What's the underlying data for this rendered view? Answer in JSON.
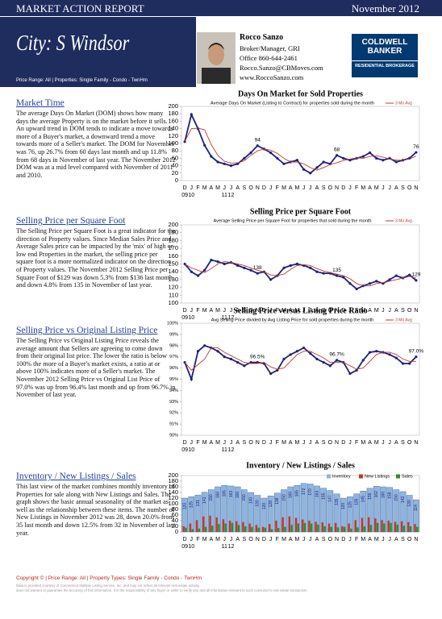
{
  "header": {
    "report": "MARKET ACTION REPORT",
    "date": "November 2012",
    "city": "City: S Windsor",
    "filters": "Price Range: All | Properties: Single Family - Condo - TwnHm"
  },
  "agent": {
    "name": "Rocco Sanzo",
    "role": "Broker/Manager, GRI",
    "phone": "Office 860-644-2461",
    "email": "Rocco.Sanzo@CBMoves.com",
    "web": "www.RoccoSanzo.com"
  },
  "logo": {
    "brand_1": "COLDWELL",
    "brand_2": "BANKER",
    "division": "RESIDENTIAL BROKERAGE"
  },
  "sections": [
    {
      "title": "Market Time",
      "text": "The average Days On Market (DOM) shows how many days the average Property is on the market before it sells. An upward trend in DOM tends to indicate a move towards more of a Buyer's market, a downward trend a move towards more of a Seller's market. The DOM for November was 76, up 26.7% from 60 days last month and up 11.8% from 68 days in November of last year. The November 2012 DOM was at a mid level compared with November of 2011 and 2010."
    },
    {
      "title": "Selling Price per Square Foot",
      "text": "The Selling Price per Square Foot is a great indicator for the direction of Property values. Since Median Sales Price and Average Sales price can be impacted by the 'mix' of high or low end Properties in the market, the selling price per square foot is a more normalized indicator on the direction of Property values. The November 2012 Selling Price per Square Foot of $129 was down 5.3% from $136 last month and down 4.8% from 135 in November of last year."
    },
    {
      "title": "Selling Price vs Original Listing Price",
      "text": "The Selling Price vs Original Listing Price reveals the average amount that Sellers are agreeing to come down from their original list price. The lower the ratio is below 100% the more of a Buyer's market exists, a ratio at or above 100% indicates more of a Seller's market. The November 2012 Selling Price vs Original List Price of 97.0% was up from 96.4% last month and up from 96.7% in November of last year."
    },
    {
      "title": "Inventory / New Listings / Sales",
      "text": "This last view of the market combines monthly inventory of Properties for sale along with New Listings and Sales. The graph shows the basic annual seasonality of the market as well as the relationship between these items. The number of New Listings in November 2012 was 28, down 20.0% from 35 last month and down 12.5% from 32 in November of last year."
    }
  ],
  "chart_data": [
    {
      "type": "line",
      "title": "Days On Market for Sold Properties",
      "subtitle": "Average Days On Market (Listing to Contract) for properties sold during the month",
      "categories": [
        "D",
        "J",
        "F",
        "M",
        "A",
        "M",
        "J",
        "J",
        "A",
        "S",
        "O",
        "N",
        "D",
        "J",
        "F",
        "M",
        "A",
        "M",
        "J",
        "J",
        "A",
        "S",
        "O",
        "N",
        "D",
        "J",
        "F",
        "M",
        "A",
        "M",
        "J",
        "J",
        "A",
        "S",
        "O",
        "N"
      ],
      "years": [
        "09",
        "10",
        "11",
        "12"
      ],
      "series": [
        {
          "color": "#1a237e",
          "values": [
            105,
            178,
            140,
            95,
            65,
            50,
            45,
            40,
            45,
            60,
            75,
            94,
            85,
            75,
            60,
            45,
            50,
            55,
            30,
            20,
            35,
            50,
            45,
            68,
            60,
            55,
            60,
            65,
            75,
            60,
            55,
            60,
            50,
            55,
            60,
            76
          ]
        },
        {
          "name": "3 Mo Avg",
          "color": "#c0392b",
          "values": [
            105,
            140,
            141,
            137,
            97,
            68,
            52,
            47,
            48,
            53,
            68,
            80,
            85,
            82,
            73,
            60,
            50,
            50,
            45,
            35,
            28,
            35,
            43,
            48,
            54,
            58,
            61,
            60,
            65,
            67,
            63,
            58,
            55,
            55,
            58,
            66
          ]
        }
      ],
      "ylim": [
        0,
        200
      ],
      "yticks": [
        0,
        20,
        40,
        60,
        80,
        100,
        120,
        140,
        160,
        180,
        200
      ],
      "grid": false
    },
    {
      "type": "line",
      "title": "Selling Price per Square Foot",
      "subtitle": "Average Selling Price per Square Foot for properties that sold during the month",
      "categories": [
        "D",
        "J",
        "F",
        "M",
        "A",
        "M",
        "J",
        "J",
        "A",
        "S",
        "O",
        "N",
        "D",
        "J",
        "F",
        "M",
        "A",
        "M",
        "J",
        "J",
        "A",
        "S",
        "O",
        "N",
        "D",
        "J",
        "F",
        "M",
        "A",
        "M",
        "J",
        "J",
        "A",
        "S",
        "O",
        "N"
      ],
      "years": [
        "09",
        "10",
        "11",
        "12"
      ],
      "series": [
        {
          "color": "#1a237e",
          "values": [
            150,
            140,
            135,
            142,
            155,
            153,
            150,
            152,
            148,
            145,
            142,
            138,
            140,
            130,
            135,
            145,
            148,
            150,
            148,
            145,
            140,
            138,
            138,
            135,
            133,
            125,
            118,
            122,
            125,
            128,
            125,
            130,
            135,
            132,
            136,
            129
          ]
        },
        {
          "name": "3 Mo Avg",
          "color": "#c0392b",
          "values": [
            150,
            145,
            142,
            139,
            144,
            150,
            153,
            152,
            150,
            148,
            145,
            142,
            140,
            136,
            135,
            137,
            143,
            148,
            149,
            148,
            144,
            141,
            139,
            137,
            135,
            131,
            125,
            122,
            122,
            125,
            126,
            128,
            130,
            132,
            134,
            132
          ]
        }
      ],
      "ylim": [
        100,
        200
      ],
      "yticks": [
        100,
        110,
        120,
        130,
        140,
        150,
        160,
        170,
        180,
        190,
        200
      ],
      "grid": false
    },
    {
      "type": "line",
      "title": "Selling Price versus Listing Price Ratio",
      "subtitle": "Avg Selling Price divided by Avg Listing Price for sold properties during the month",
      "categories": [
        "D",
        "J",
        "F",
        "M",
        "A",
        "M",
        "J",
        "J",
        "A",
        "S",
        "O",
        "N",
        "D",
        "J",
        "F",
        "M",
        "A",
        "M",
        "J",
        "J",
        "A",
        "S",
        "O",
        "N",
        "D",
        "J",
        "F",
        "M",
        "A",
        "M",
        "J",
        "J",
        "A",
        "S",
        "O",
        "N"
      ],
      "years": [
        "09",
        "10",
        "11",
        "12"
      ],
      "series": [
        {
          "color": "#1a237e",
          "values": [
            96.5,
            95,
            97.5,
            98,
            97.8,
            97.5,
            97,
            96.8,
            96.5,
            96.2,
            96.5,
            96.5,
            96.4,
            95.5,
            95.8,
            96.8,
            97.2,
            97.5,
            97.8,
            97.3,
            96.8,
            96.5,
            96.2,
            96.7,
            96.5,
            95.5,
            95.8,
            96.7,
            97.4,
            97.5,
            97.4,
            97.2,
            96.9,
            96.4,
            96.4,
            97.0
          ],
          "value_labels": [
            null,
            null,
            null,
            null,
            null,
            null,
            null,
            null,
            null,
            null,
            null,
            "96.5%",
            null,
            null,
            null,
            null,
            null,
            null,
            null,
            null,
            null,
            null,
            null,
            "96.7%",
            null,
            null,
            null,
            null,
            null,
            null,
            null,
            null,
            null,
            null,
            null,
            "97.0%"
          ]
        },
        {
          "name": "3 Mo Avg",
          "color": "#c0392b",
          "values": [
            96.5,
            95.8,
            96.3,
            96.8,
            97.8,
            97.8,
            97.4,
            97.1,
            96.8,
            96.5,
            96.4,
            96.4,
            96.5,
            96.1,
            95.9,
            96.0,
            96.6,
            97.2,
            97.5,
            97.5,
            97.2,
            96.9,
            96.5,
            96.5,
            96.5,
            96.2,
            95.9,
            96.0,
            96.6,
            97.2,
            97.4,
            97.4,
            97.2,
            96.8,
            96.6,
            96.6
          ]
        }
      ],
      "ylim": [
        90,
        100
      ],
      "yticks": [
        {
          "value": 90,
          "label": "90%"
        },
        {
          "value": 91,
          "label": "91%"
        },
        {
          "value": 92,
          "label": "92%"
        },
        {
          "value": 93,
          "label": "93%"
        },
        {
          "value": 94,
          "label": "94%"
        },
        {
          "value": 95,
          "label": "95%"
        },
        {
          "value": 96,
          "label": "96%"
        },
        {
          "value": 97,
          "label": "97%"
        },
        {
          "value": 98,
          "label": "98%"
        },
        {
          "value": 99,
          "label": "99%"
        },
        {
          "value": 100,
          "label": "100%"
        }
      ],
      "grid": false
    },
    {
      "type": "bar",
      "title": "Inventory / New Listings / Sales",
      "categories": [
        "D",
        "J",
        "F",
        "M",
        "A",
        "M",
        "J",
        "J",
        "A",
        "S",
        "O",
        "N",
        "D",
        "J",
        "F",
        "M",
        "A",
        "M",
        "J",
        "J",
        "A",
        "S",
        "O",
        "N",
        "D",
        "J",
        "F",
        "M",
        "A",
        "M",
        "J",
        "J",
        "A",
        "S",
        "O",
        "N"
      ],
      "years": [
        "09",
        "10",
        "11",
        "12"
      ],
      "series": [
        {
          "name": "Inventory",
          "color": "#8fb4de",
          "values": [
            120,
            125,
            131,
            141,
            150,
            160,
            165,
            163,
            160,
            150,
            140,
            130,
            120,
            128,
            138,
            150,
            160,
            165,
            172,
            170,
            163,
            155,
            147,
            135,
            120,
            125,
            135,
            145,
            155,
            162,
            160,
            158,
            150,
            143,
            130,
            114
          ]
        },
        {
          "name": "New Listings",
          "color": "#c0392b",
          "values": [
            20,
            30,
            42,
            55,
            58,
            52,
            45,
            40,
            38,
            35,
            30,
            25,
            18,
            28,
            40,
            52,
            55,
            50,
            44,
            40,
            36,
            34,
            30,
            32,
            20,
            30,
            42,
            50,
            52,
            48,
            42,
            40,
            36,
            38,
            35,
            28
          ]
        },
        {
          "name": "Sales",
          "color": "#2e8b2e",
          "values": [
            15,
            10,
            12,
            18,
            22,
            28,
            30,
            32,
            25,
            20,
            18,
            15,
            15,
            10,
            14,
            18,
            25,
            30,
            32,
            30,
            26,
            20,
            18,
            16,
            18,
            12,
            16,
            20,
            25,
            32,
            30,
            32,
            26,
            22,
            20,
            18
          ]
        }
      ],
      "ylim": [
        0,
        200
      ],
      "yticks": [
        0,
        20,
        40,
        60,
        80,
        100,
        120,
        140,
        160,
        180,
        200
      ],
      "grid": false
    }
  ],
  "footer": {
    "copyright": "Copyright © | Price Range: All | Property Types: Single Family - Condo - TwnHm",
    "note_1": "Data is provided courtesy of Connecticut Multiple Listing Service, Inc. and may not reflect all relevant real estate activity.",
    "note_2": "does not warrant or guarantee the accuracy of this information. It is the responsibility of any buyer or seller to verify any and all information relevant to such consumer's real estate transaction."
  }
}
